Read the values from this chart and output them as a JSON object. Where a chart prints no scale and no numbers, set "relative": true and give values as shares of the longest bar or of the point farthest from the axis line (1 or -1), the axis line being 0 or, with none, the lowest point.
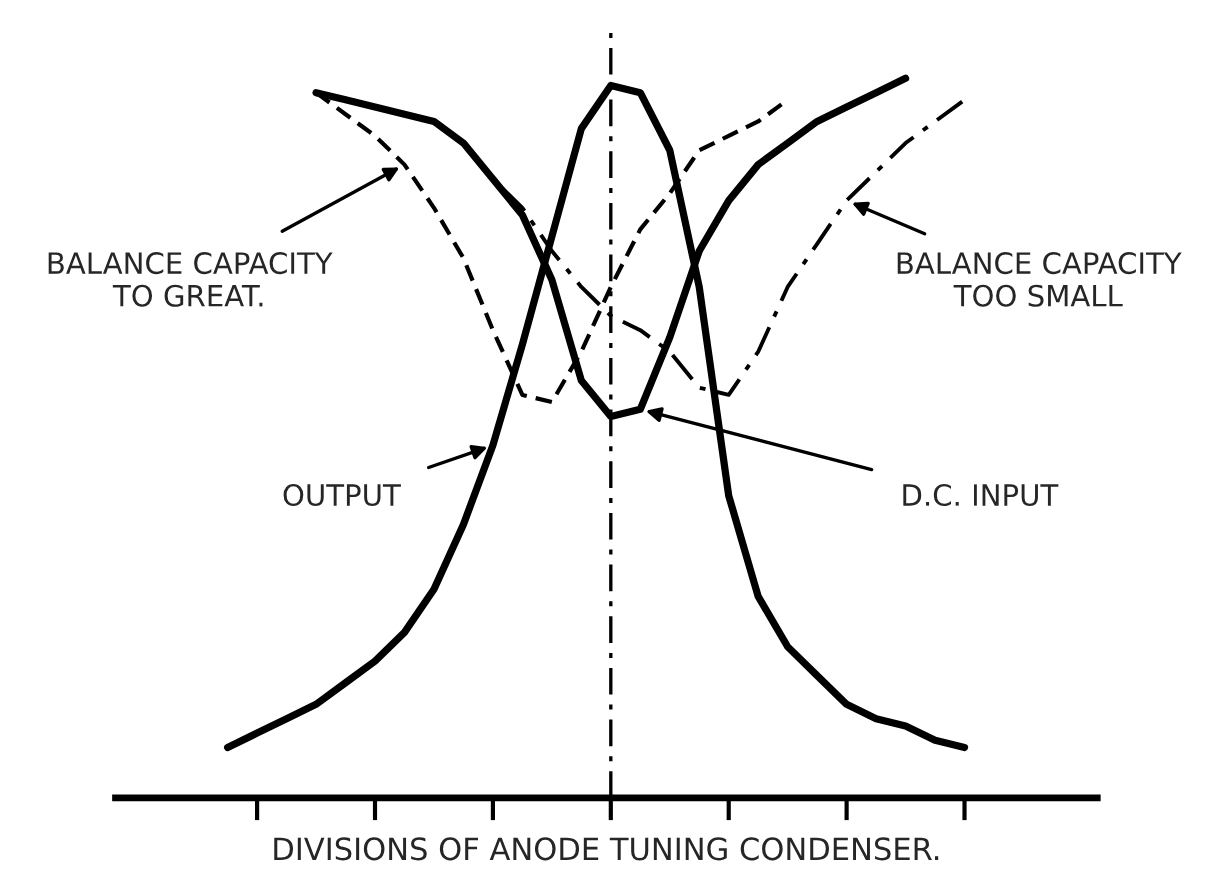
{
  "chart_data": {
    "type": "line",
    "relative": true,
    "xlabel": "DIVISIONS OF ANODE TUNING CONDENSER.",
    "categories": [
      null,
      null,
      null,
      null,
      null,
      null,
      null,
      null,
      null,
      null,
      null,
      null,
      null,
      null,
      null,
      null,
      null,
      null,
      null,
      null,
      null,
      null,
      null,
      null,
      null,
      null,
      null
    ],
    "tick_labels": false,
    "grid": false,
    "legend": false,
    "series": [
      {
        "color": "#000000",
        "line_style": "solid",
        "values": [
          0.07,
          0.09,
          0.11,
          0.13,
          0.16,
          0.19,
          0.23,
          0.29,
          0.38,
          0.49,
          0.63,
          0.78,
          0.93,
          0.99,
          0.98,
          0.9,
          0.71,
          0.42,
          0.28,
          0.21,
          0.17,
          0.13,
          0.11,
          0.1,
          0.08,
          0.07,
          null
        ]
      },
      {
        "color": "#000000",
        "line_style": "solid",
        "values": [
          null,
          null,
          null,
          0.98,
          0.97,
          0.96,
          0.95,
          0.94,
          0.91,
          0.86,
          0.81,
          0.72,
          0.58,
          0.53,
          0.54,
          0.64,
          0.76,
          0.83,
          0.88,
          0.91,
          0.94,
          0.96,
          0.98,
          1.0,
          null,
          null,
          null
        ]
      },
      {
        "color": "#000000",
        "line_style": "dashed",
        "values": [
          null,
          null,
          null,
          0.98,
          0.95,
          0.92,
          0.88,
          0.82,
          0.75,
          0.65,
          0.56,
          0.55,
          0.62,
          0.71,
          0.79,
          0.84,
          0.9,
          0.92,
          0.94,
          0.97,
          null,
          null,
          null,
          null,
          null,
          null,
          null
        ]
      },
      {
        "color": "#000000",
        "line_style": "dashdot",
        "values": [
          null,
          null,
          null,
          null,
          null,
          null,
          null,
          null,
          0.91,
          0.86,
          0.82,
          0.76,
          0.71,
          0.67,
          0.65,
          0.62,
          0.57,
          0.56,
          0.62,
          0.71,
          0.77,
          0.83,
          0.87,
          0.91,
          0.94,
          0.97,
          null
        ]
      }
    ],
    "annotations": [
      "BALANCE CAPACITY\nTO GREAT.",
      "BALANCE CAPACITY\nTOO SMALL",
      "OUTPUT",
      "D.C. INPUT"
    ]
  }
}
